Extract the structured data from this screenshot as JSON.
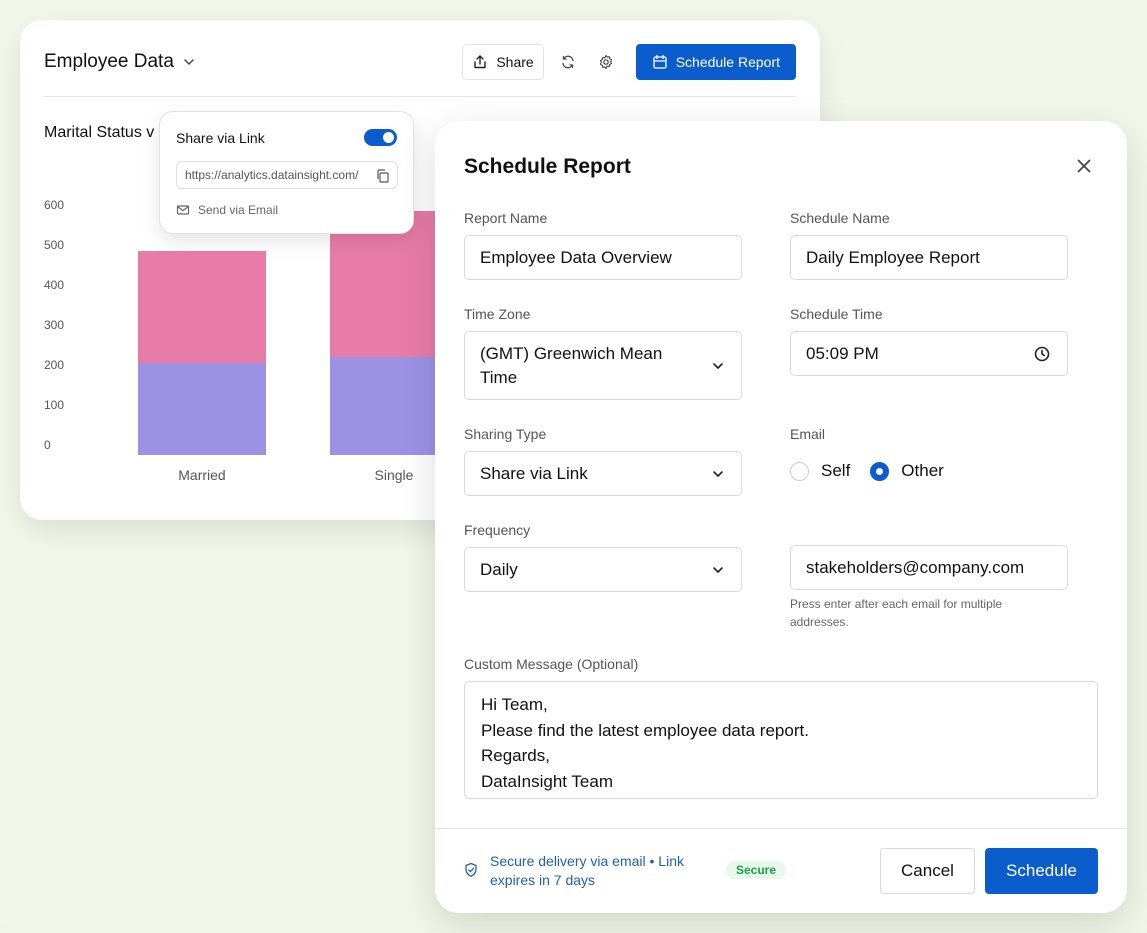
{
  "dashboard": {
    "title": "Employee Data",
    "share_label": "Share",
    "schedule_report_label": "Schedule Report",
    "chart_title": "Marital Status v"
  },
  "share_popover": {
    "label": "Share via Link",
    "toggle_on": true,
    "link": "https://analytics.datainsight.com/",
    "send_email": "Send via Email"
  },
  "chart_data": {
    "type": "bar",
    "stacked": true,
    "categories": [
      "Married",
      "Single"
    ],
    "series": [
      {
        "values": [
          230,
          245
        ],
        "color": "#9b92e6"
      },
      {
        "values": [
          280,
          365
        ],
        "color": "#e87ca8"
      }
    ],
    "yticks": [
      0,
      100,
      200,
      300,
      400,
      500,
      600
    ],
    "ylim": [
      0,
      600
    ]
  },
  "modal": {
    "title": "Schedule Report",
    "report_name": {
      "label": "Report Name",
      "value": "Employee Data Overview"
    },
    "schedule_name": {
      "label": "Schedule Name",
      "value": "Daily Employee Report"
    },
    "time_zone": {
      "label": "Time Zone",
      "value": "(GMT) Greenwich Mean Time"
    },
    "schedule_time": {
      "label": "Schedule Time",
      "value": "05:09 PM"
    },
    "sharing_type": {
      "label": "Sharing Type",
      "value": "Share via Link"
    },
    "email": {
      "label": "Email",
      "option_self": "Self",
      "option_other": "Other",
      "selected": "Other"
    },
    "frequency": {
      "label": "Frequency",
      "value": "Daily"
    },
    "email_input": {
      "value": "stakeholders@company.com",
      "hint": "Press enter after each email for multiple addresses."
    },
    "custom_message": {
      "label": "Custom Message (Optional)",
      "lines": [
        "Hi Team,",
        "Please find the latest employee data report.",
        "Regards,",
        "DataInsight Team"
      ]
    },
    "secure_note": "Secure delivery via email • Link expires in 7 days",
    "secure_badge": "Secure",
    "cancel_label": "Cancel",
    "schedule_label": "Schedule"
  }
}
